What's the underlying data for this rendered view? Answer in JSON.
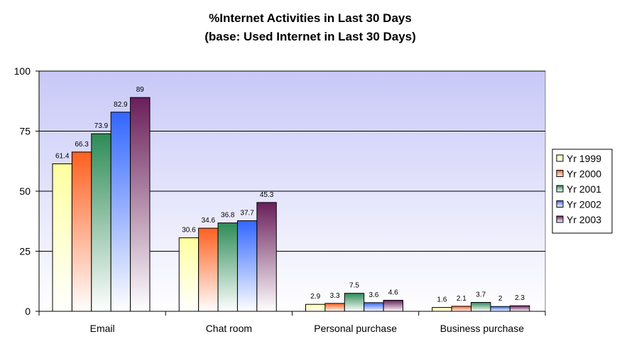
{
  "chart_data": {
    "type": "bar",
    "title": "%Internet Activities in Last 30 Days",
    "subtitle": "(base: Used Internet in Last 30 Days)",
    "xlabel": "",
    "ylabel": "",
    "ylim": [
      0,
      100
    ],
    "yticks": [
      "0",
      "25",
      "50",
      "75",
      "100"
    ],
    "grid": true,
    "legend_position": "right",
    "categories": [
      "Email",
      "Chat room",
      "Personal purchase",
      "Business purchase"
    ],
    "series": [
      {
        "name": "Yr 1999",
        "color": "#ffffa0",
        "values": [
          61.4,
          30.6,
          2.9,
          1.6
        ],
        "labels": [
          "61.4",
          "30.6",
          "2.9",
          "1.6"
        ]
      },
      {
        "name": "Yr 2000",
        "color": "#ff6020",
        "values": [
          66.3,
          34.6,
          3.3,
          2.1
        ],
        "labels": [
          "66.3",
          "34.6",
          "3.3",
          "2.1"
        ]
      },
      {
        "name": "Yr 2001",
        "color": "#2e8b57",
        "values": [
          73.9,
          36.8,
          7.5,
          3.7
        ],
        "labels": [
          "73.9",
          "36.8",
          "7.5",
          "3.7"
        ]
      },
      {
        "name": "Yr 2002",
        "color": "#3366ff",
        "values": [
          82.9,
          37.7,
          3.6,
          2.0
        ],
        "labels": [
          "82.9",
          "37.7",
          "3.6",
          "2"
        ]
      },
      {
        "name": "Yr 2003",
        "color": "#6a1e5a",
        "values": [
          89,
          45.3,
          4.6,
          2.3
        ],
        "labels": [
          "89",
          "45.3",
          "4.6",
          "2.3"
        ]
      }
    ]
  }
}
